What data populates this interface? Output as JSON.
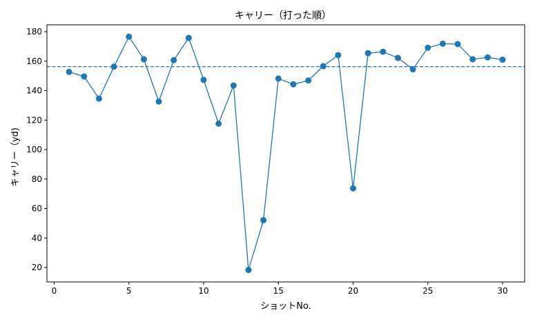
{
  "chart_data": {
    "type": "line",
    "title": "キャリー（打った順）",
    "xlabel": "ショットNo.",
    "ylabel": "キャリー（yd)",
    "x": [
      1,
      2,
      3,
      4,
      5,
      6,
      7,
      8,
      9,
      10,
      11,
      12,
      13,
      14,
      15,
      16,
      17,
      18,
      19,
      20,
      21,
      22,
      23,
      24,
      25,
      26,
      27,
      28,
      29,
      30
    ],
    "series": [
      {
        "name": "キャリー",
        "color": "#1f77b4",
        "marker": "circle",
        "values": [
          152.7,
          149.6,
          134.6,
          156.3,
          176.6,
          161.3,
          132.6,
          160.7,
          175.8,
          147.3,
          117.6,
          143.5,
          18.3,
          52.1,
          148.2,
          144.3,
          146.9,
          156.6,
          164.1,
          73.7,
          165.4,
          166.4,
          162.2,
          154.5,
          169.1,
          171.9,
          171.6,
          161.3,
          162.6,
          161.0
        ]
      }
    ],
    "reference_line": {
      "type": "horizontal",
      "style": "dashed",
      "value": 156.3,
      "color": "#1f77b4"
    },
    "xticks": [
      0,
      5,
      10,
      15,
      20,
      25,
      30
    ],
    "yticks": [
      20,
      40,
      60,
      80,
      100,
      120,
      140,
      160,
      180
    ],
    "xlim": [
      -0.5,
      31.5
    ],
    "ylim": [
      10.5,
      184
    ],
    "grid": false,
    "legend": null
  }
}
